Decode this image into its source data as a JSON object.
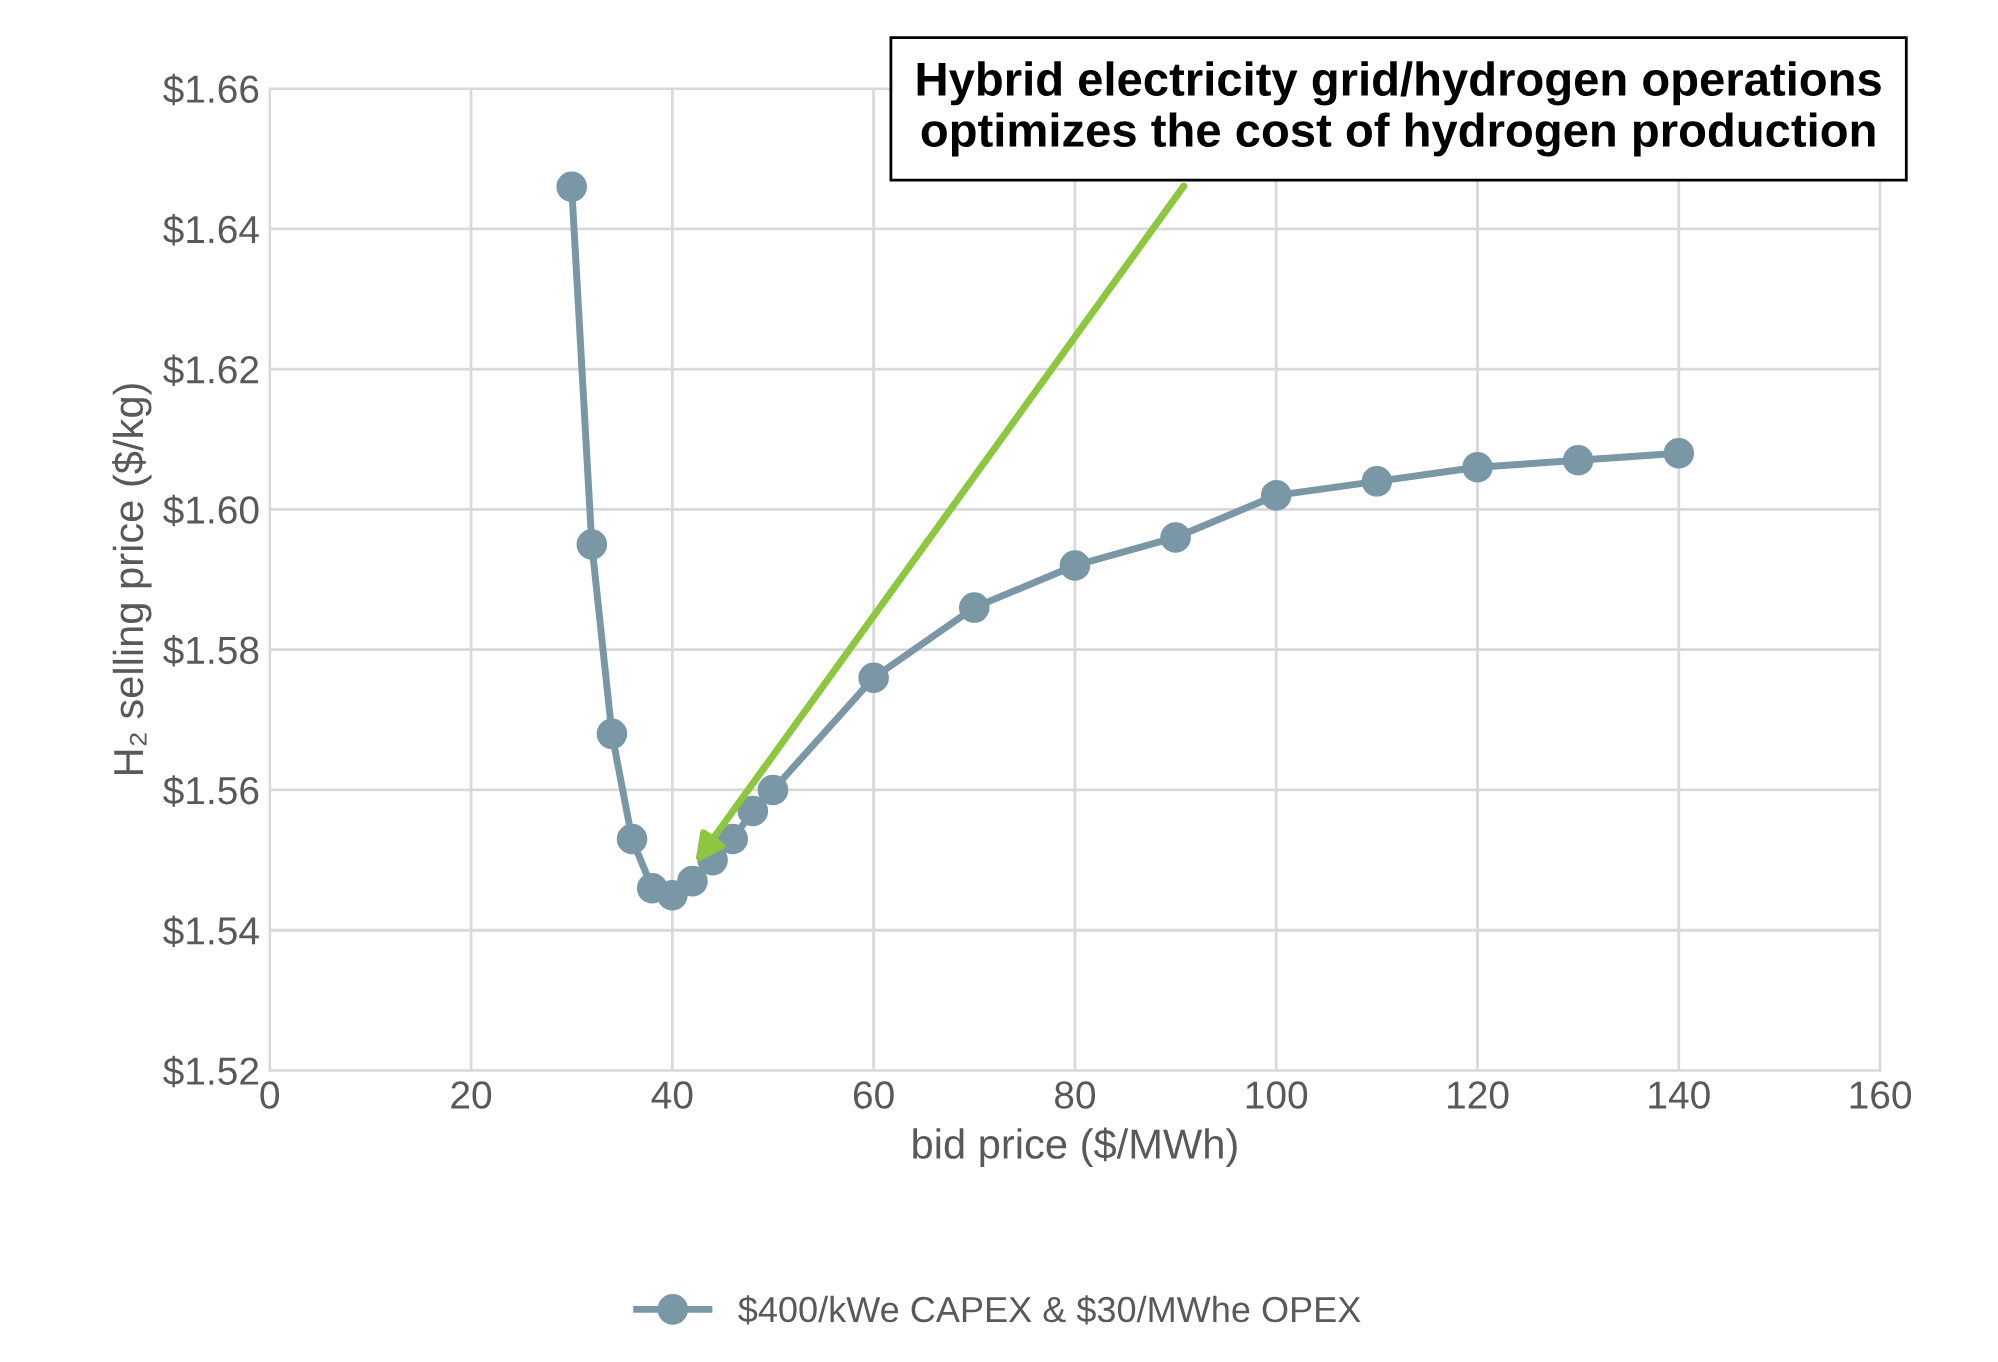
{
  "chart_data": {
    "type": "line",
    "xlabel": "bid price ($/MWh)",
    "ylabel": "H₂ selling price ($/kg)",
    "x": [
      30,
      32,
      34,
      36,
      38,
      40,
      42,
      44,
      46,
      48,
      50,
      60,
      70,
      80,
      90,
      100,
      110,
      120,
      130,
      140
    ],
    "series": [
      {
        "name": "$400/kWe CAPEX & $30/MWhe OPEX",
        "color": "#7a97a6",
        "values": [
          1.646,
          1.595,
          1.568,
          1.553,
          1.546,
          1.545,
          1.547,
          1.55,
          1.553,
          1.557,
          1.56,
          1.576,
          1.586,
          1.592,
          1.596,
          1.602,
          1.604,
          1.606,
          1.607,
          1.608
        ]
      }
    ],
    "xlim": [
      0,
      160
    ],
    "xticks": [
      0,
      20,
      40,
      60,
      80,
      100,
      120,
      140,
      160
    ],
    "ylim": [
      1.52,
      1.66
    ],
    "yticks": [
      {
        "value": 1.52,
        "label": "$1.52"
      },
      {
        "value": 1.54,
        "label": "$1.54"
      },
      {
        "value": 1.56,
        "label": "$1.56"
      },
      {
        "value": 1.58,
        "label": "$1.58"
      },
      {
        "value": 1.6,
        "label": "$1.60"
      },
      {
        "value": 1.62,
        "label": "$1.62"
      },
      {
        "value": 1.64,
        "label": "$1.64"
      },
      {
        "value": 1.66,
        "label": "$1.66"
      }
    ],
    "annotations": [
      "Hybrid electricity grid/hydrogen operations\noptimizes the cost of hydrogen production"
    ],
    "grid": true,
    "legend": "bottom",
    "marker": "circle",
    "line_style": "solid"
  }
}
